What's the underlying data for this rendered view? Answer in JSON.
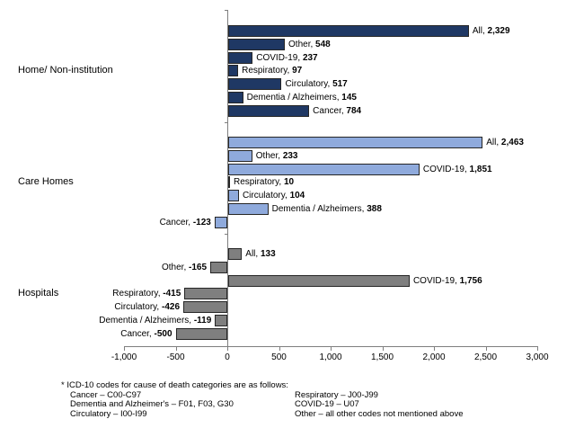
{
  "colors": {
    "home_bar": "#1F3864",
    "care_bar": "#8FAADC",
    "hospital_bar": "#7F7F7F",
    "bar_border": "#262626",
    "axis": "#7F7F7F",
    "text": "#000000"
  },
  "chart_data": {
    "type": "bar",
    "orientation": "horizontal",
    "title": "",
    "xlabel": "",
    "ylabel": "",
    "xlim": [
      -1000,
      3000
    ],
    "grid": false,
    "legend": false,
    "value_axis": {
      "tick_values": [
        -1000,
        -500,
        0,
        500,
        1000,
        1500,
        2000,
        2500,
        3000
      ],
      "ticks": [
        "-1,000",
        "-500",
        "0",
        "500",
        "1,000",
        "1,500",
        "2,000",
        "2,500",
        "3,000"
      ]
    },
    "categories": [
      "All",
      "Other",
      "COVID-19",
      "Respiratory",
      "Circulatory",
      "Dementia / Alzheimers",
      "Cancer"
    ],
    "groups": [
      {
        "label": "Home/ Non-institution",
        "key": "home-non-institution",
        "color": "#1F3864",
        "bars": [
          {
            "name": "All",
            "value": 2329,
            "display": "2,329"
          },
          {
            "name": "Other",
            "value": 548,
            "display": "548"
          },
          {
            "name": "COVID-19",
            "value": 237,
            "display": "237"
          },
          {
            "name": "Respiratory",
            "value": 97,
            "display": "97"
          },
          {
            "name": "Circulatory",
            "value": 517,
            "display": "517"
          },
          {
            "name": "Dementia / Alzheimers",
            "value": 145,
            "display": "145"
          },
          {
            "name": "Cancer",
            "value": 784,
            "display": "784"
          }
        ]
      },
      {
        "label": "Care Homes",
        "key": "care-homes",
        "color": "#8FAADC",
        "bars": [
          {
            "name": "All",
            "value": 2463,
            "display": "2,463"
          },
          {
            "name": "Other",
            "value": 233,
            "display": "233"
          },
          {
            "name": "COVID-19",
            "value": 1851,
            "display": "1,851"
          },
          {
            "name": "Respiratory",
            "value": 10,
            "display": "10"
          },
          {
            "name": "Circulatory",
            "value": 104,
            "display": "104"
          },
          {
            "name": "Dementia / Alzheimers",
            "value": 388,
            "display": "388"
          },
          {
            "name": "Cancer",
            "value": -123,
            "display": "-123"
          }
        ]
      },
      {
        "label": "Hospitals",
        "key": "hospitals",
        "color": "#7F7F7F",
        "bars": [
          {
            "name": "All",
            "value": 133,
            "display": "133"
          },
          {
            "name": "Other",
            "value": -165,
            "display": "-165"
          },
          {
            "name": "COVID-19",
            "value": 1756,
            "display": "1,756"
          },
          {
            "name": "Respiratory",
            "value": -415,
            "display": "-415"
          },
          {
            "name": "Circulatory",
            "value": -426,
            "display": "-426"
          },
          {
            "name": "Dementia / Alzheimers",
            "value": -119,
            "display": "-119"
          },
          {
            "name": "Cancer",
            "value": -500,
            "display": "-500"
          }
        ]
      }
    ]
  },
  "footnote": {
    "title": "* ICD-10 codes for cause of death categories are as follows:",
    "left": [
      "Cancer – C00-C97",
      "Dementia and Alzheimer's – F01, F03, G30",
      "Circulatory – I00-I99"
    ],
    "right": [
      "Respiratory – J00-J99",
      "COVID-19 – U07",
      "Other – all other codes not mentioned above"
    ]
  }
}
